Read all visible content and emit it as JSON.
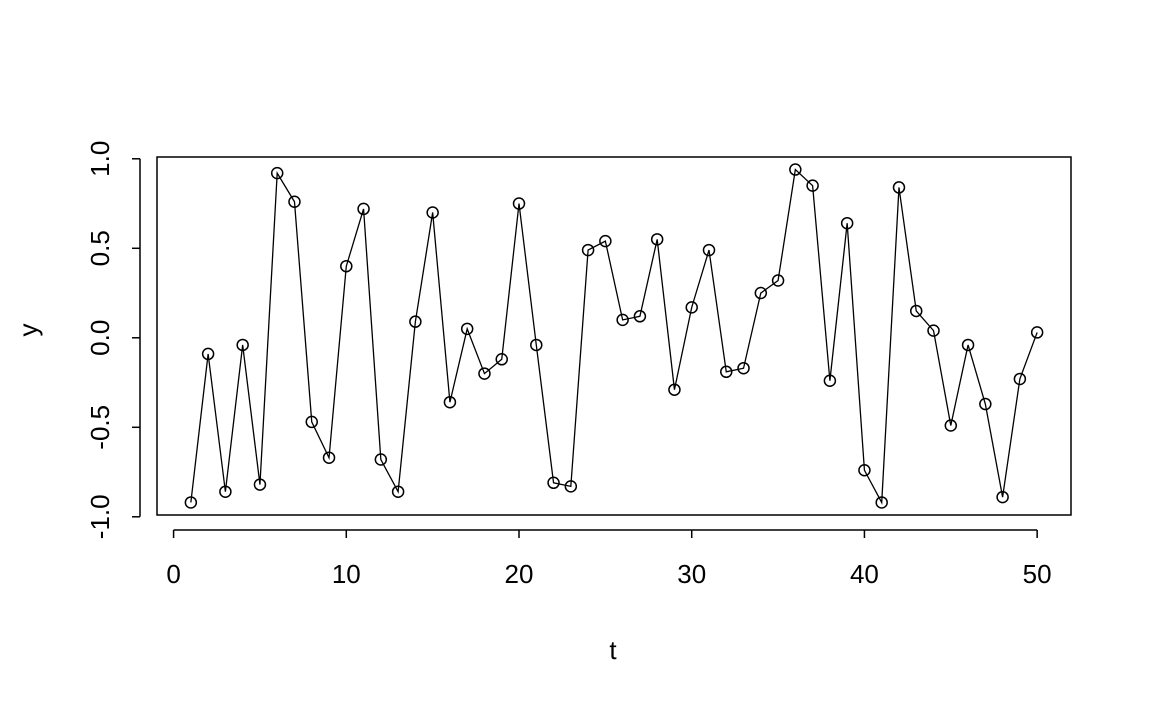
{
  "chart_data": {
    "type": "line",
    "xlabel": "t",
    "ylabel": "y",
    "x": [
      1,
      2,
      3,
      4,
      5,
      6,
      7,
      8,
      9,
      10,
      11,
      12,
      13,
      14,
      15,
      16,
      17,
      18,
      19,
      20,
      21,
      22,
      23,
      24,
      25,
      26,
      27,
      28,
      29,
      30,
      31,
      32,
      33,
      34,
      35,
      36,
      37,
      38,
      39,
      40,
      41,
      42,
      43,
      44,
      45,
      46,
      47,
      48,
      49,
      50
    ],
    "values": [
      -0.92,
      -0.09,
      -0.86,
      -0.04,
      -0.82,
      0.92,
      0.76,
      -0.47,
      -0.67,
      0.4,
      0.72,
      -0.68,
      -0.86,
      0.09,
      0.7,
      -0.36,
      0.05,
      -0.2,
      -0.12,
      0.75,
      -0.04,
      -0.81,
      -0.83,
      0.49,
      0.54,
      0.1,
      0.12,
      0.55,
      -0.29,
      0.17,
      0.49,
      -0.19,
      -0.17,
      0.25,
      0.32,
      0.94,
      0.85,
      -0.24,
      0.64,
      -0.74,
      -0.92,
      0.84,
      0.15,
      0.04,
      -0.49,
      -0.04,
      -0.37,
      -0.89,
      -0.23,
      0.03
    ],
    "color": "#000000",
    "xlim": [
      -0.96,
      51.96
    ],
    "ylim": [
      -0.99,
      1.01
    ],
    "xticks": [
      0,
      10,
      20,
      30,
      40,
      50
    ],
    "yticks": [
      {
        "value": -1,
        "label": "-1.0"
      },
      -0.5,
      {
        "value": 0,
        "label": "0.0"
      },
      0.5,
      {
        "value": 1,
        "label": "1.0"
      }
    ]
  }
}
